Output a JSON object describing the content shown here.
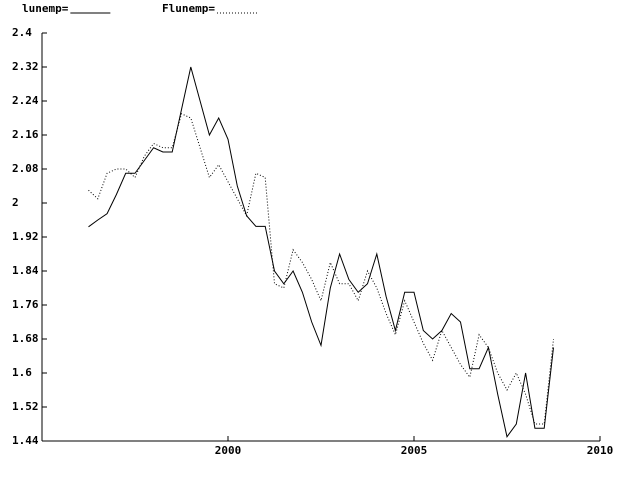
{
  "chart_data": {
    "type": "line",
    "x": [
      1996.25,
      1996.5,
      1996.75,
      1997,
      1997.25,
      1997.5,
      1997.75,
      1998,
      1998.25,
      1998.5,
      1998.75,
      1999,
      1999.25,
      1999.5,
      1999.75,
      2000,
      2000.25,
      2000.5,
      2000.75,
      2001,
      2001.25,
      2001.5,
      2001.75,
      2002,
      2002.25,
      2002.5,
      2002.75,
      2003,
      2003.25,
      2003.5,
      2003.75,
      2004,
      2004.25,
      2004.5,
      2004.75,
      2005,
      2005.25,
      2005.5,
      2005.75,
      2006,
      2006.25,
      2006.5,
      2006.75,
      2007,
      2007.25,
      2007.5,
      2007.75,
      2008,
      2008.25,
      2008.5,
      2008.75
    ],
    "series": [
      {
        "name": "lunemp=",
        "color": "#000000",
        "style": "solid",
        "values": [
          1.944,
          1.96,
          1.975,
          2.02,
          2.07,
          2.07,
          2.1,
          2.13,
          2.12,
          2.12,
          2.22,
          2.32,
          2.24,
          2.16,
          2.2,
          2.15,
          2.04,
          1.97,
          1.945,
          1.945,
          1.84,
          1.81,
          1.84,
          1.79,
          1.72,
          1.665,
          1.8,
          1.88,
          1.82,
          1.79,
          1.81,
          1.88,
          1.78,
          1.7,
          1.79,
          1.79,
          1.7,
          1.68,
          1.7,
          1.74,
          1.72,
          1.61,
          1.61,
          1.66,
          1.55,
          1.45,
          1.48,
          1.6,
          1.47,
          1.47,
          1.66
        ]
      },
      {
        "name": "Flunemp=",
        "color": "#000000",
        "style": "dotted",
        "values": [
          2.03,
          2.01,
          2.07,
          2.08,
          2.08,
          2.06,
          2.11,
          2.14,
          2.13,
          2.13,
          2.21,
          2.2,
          2.13,
          2.06,
          2.09,
          2.05,
          2.01,
          1.97,
          2.07,
          2.06,
          1.81,
          1.8,
          1.89,
          1.86,
          1.82,
          1.77,
          1.86,
          1.81,
          1.81,
          1.77,
          1.84,
          1.8,
          1.74,
          1.69,
          1.77,
          1.72,
          1.67,
          1.63,
          1.7,
          1.66,
          1.62,
          1.59,
          1.69,
          1.66,
          1.6,
          1.56,
          1.6,
          1.55,
          1.48,
          1.48,
          1.68
        ]
      }
    ],
    "xlim": [
      1995,
      2010
    ],
    "xticks": [
      2000,
      2005,
      2010
    ],
    "ylim": [
      1.44,
      2.4
    ],
    "yticks": [
      1.44,
      1.52,
      1.6,
      1.68,
      1.76,
      1.84,
      1.92,
      2,
      2.08,
      2.16,
      2.24,
      2.32,
      2.4
    ]
  }
}
